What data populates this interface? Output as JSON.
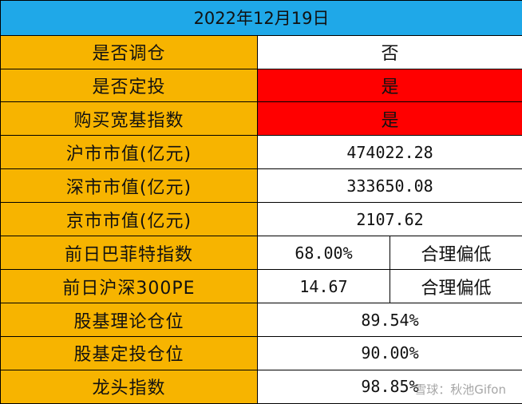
{
  "title": "2022年12月19日",
  "rows": [
    {
      "label": "是否调仓",
      "value": "否",
      "highlight": null
    },
    {
      "label": "是否定投",
      "value": "是",
      "highlight": "#ff0000"
    },
    {
      "label": "购买宽基指数",
      "value": "是",
      "highlight": "#ff0000"
    },
    {
      "label": "沪市市值(亿元)",
      "value": "474022.28"
    },
    {
      "label": "深市市值(亿元)",
      "value": "333650.08"
    },
    {
      "label": "京市市值(亿元)",
      "value": "2107.62"
    },
    {
      "label": "前日巴菲特指数",
      "value": "68.00%",
      "status": "合理偏低"
    },
    {
      "label": "前日沪深300PE",
      "value": "14.67",
      "status": "合理偏低"
    },
    {
      "label": "股基理论仓位",
      "value": "89.54%"
    },
    {
      "label": "股基定投仓位",
      "value": "90.00%"
    },
    {
      "label": "龙头指数",
      "value": "98.85%"
    }
  ],
  "watermark": "雪球：秋池Gifon",
  "colors": {
    "title_bg": "#1fa8e8",
    "label_bg": "#f7b400",
    "highlight_red": "#ff0000",
    "border": "#000000"
  }
}
